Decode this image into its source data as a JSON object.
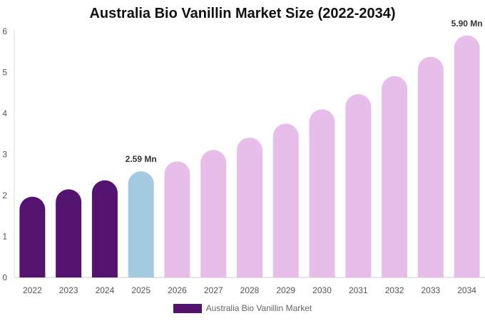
{
  "chart_data": {
    "type": "bar",
    "title": "Australia Bio Vanillin Market Size (2022-2034)",
    "xlabel": "",
    "ylabel": "",
    "categories": [
      "2022",
      "2023",
      "2024",
      "2025",
      "2026",
      "2027",
      "2028",
      "2029",
      "2030",
      "2031",
      "2032",
      "2033",
      "2034"
    ],
    "series": [
      {
        "name": "Australia Bio Vanillin Market",
        "values": [
          1.97,
          2.15,
          2.37,
          2.59,
          2.83,
          3.11,
          3.41,
          3.75,
          4.1,
          4.47,
          4.91,
          5.38,
          5.9
        ]
      }
    ],
    "ylim": [
      0,
      6
    ],
    "yticks": [
      0,
      1,
      2,
      3,
      4,
      5,
      6
    ],
    "data_labels": [
      {
        "category": "2025",
        "text": "2.59 Mn"
      },
      {
        "category": "2034",
        "text": "5.90 Mn"
      }
    ],
    "bar_colors": {
      "historical": "#54136f",
      "current": "#a3cadf",
      "forecast": "#e7bee9"
    },
    "bar_groups": [
      "historical",
      "historical",
      "historical",
      "current",
      "forecast",
      "forecast",
      "forecast",
      "forecast",
      "forecast",
      "forecast",
      "forecast",
      "forecast",
      "forecast"
    ],
    "legend": {
      "position": "bottom-center",
      "swatch_color": "#54136f"
    },
    "grid": false
  }
}
